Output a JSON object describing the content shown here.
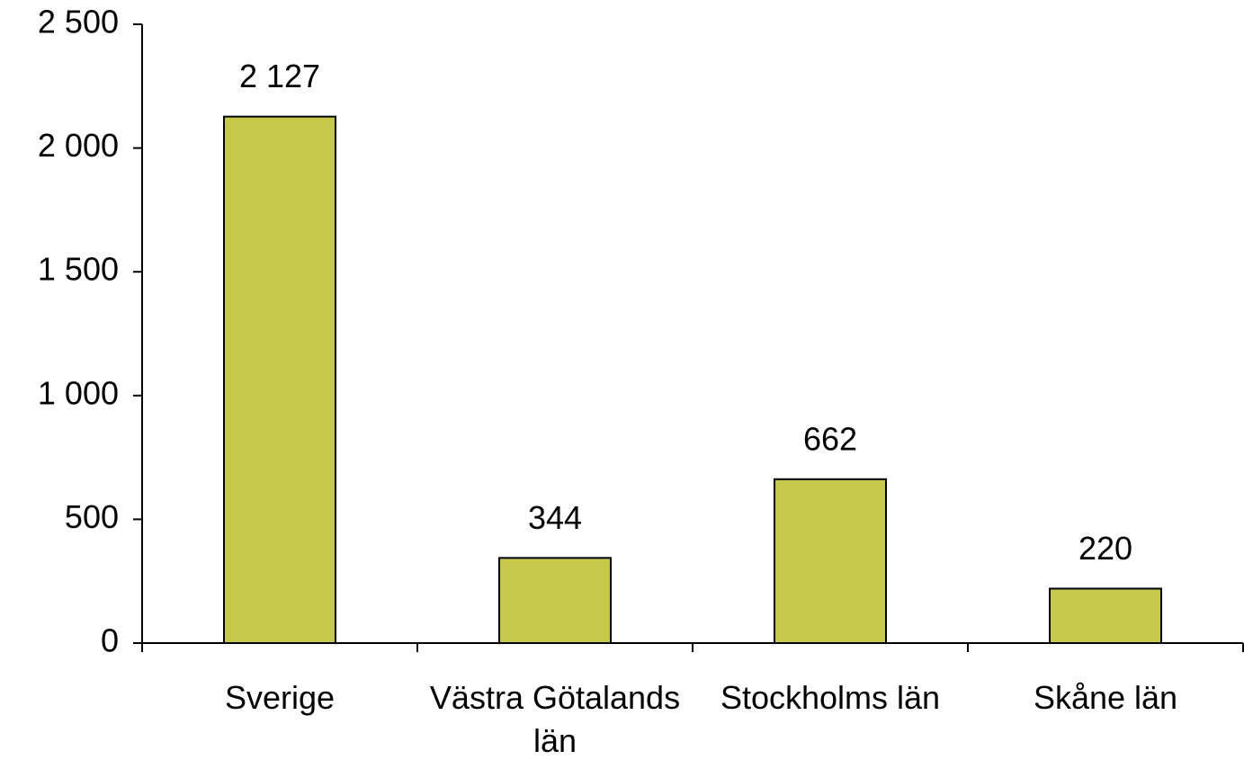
{
  "chart_data": {
    "type": "bar",
    "categories": [
      "Sverige",
      "Västra Götalands län",
      "Stockholms län",
      "Skåne län"
    ],
    "values": [
      2127,
      344,
      662,
      220
    ],
    "value_labels": [
      "2 127",
      "344",
      "662",
      "220"
    ],
    "color": "#c5c84a",
    "ylim": [
      0,
      2500
    ],
    "yticks": [
      0,
      500,
      {
        "value": 1000,
        "label": "1 000"
      },
      {
        "value": 1500,
        "label": "1 500"
      },
      {
        "value": 2000,
        "label": "2 000"
      },
      {
        "value": 2500,
        "label": "2 500"
      }
    ],
    "grid": false
  }
}
